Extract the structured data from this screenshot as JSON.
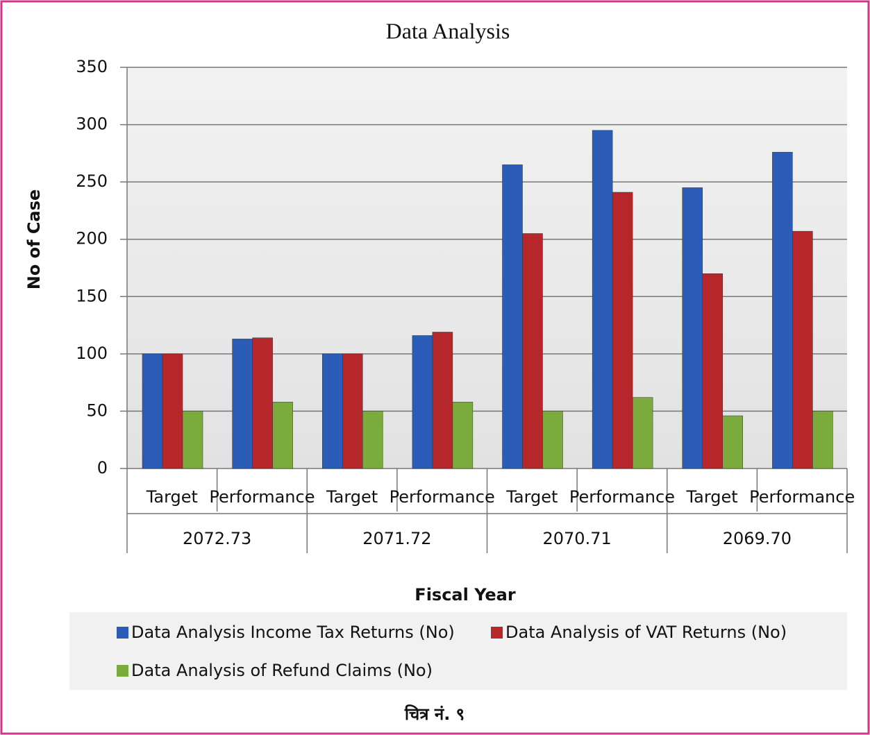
{
  "chart_data": {
    "type": "bar",
    "title": "Data Analysis",
    "y_label": "No of Case",
    "x_label": "Fiscal Year",
    "caption": "चित्र नं. ९",
    "categories": [
      "Target",
      "Performance",
      "Target",
      "Performance",
      "Target",
      "Performance",
      "Target",
      "Performance"
    ],
    "groups": [
      "2072.73",
      "2071.72",
      "2070.71",
      "2069.70"
    ],
    "series": [
      {
        "name": "Data Analysis Income Tax Returns (No)",
        "color": "#2a5cb8",
        "values": [
          100,
          113,
          100,
          116,
          265,
          295,
          245,
          276
        ]
      },
      {
        "name": "Data Analysis of VAT Returns (No)",
        "color": "#b5272b",
        "values": [
          100,
          114,
          100,
          119,
          205,
          241,
          170,
          207
        ]
      },
      {
        "name": "Data Analysis of Refund Claims (No)",
        "color": "#7aab3c",
        "values": [
          50,
          58,
          50,
          58,
          50,
          62,
          46,
          50
        ]
      }
    ],
    "ylim": [
      0,
      350
    ],
    "yticks": [
      0,
      50,
      100,
      150,
      200,
      250,
      300,
      350
    ],
    "grid": true,
    "legend": "bottom"
  }
}
